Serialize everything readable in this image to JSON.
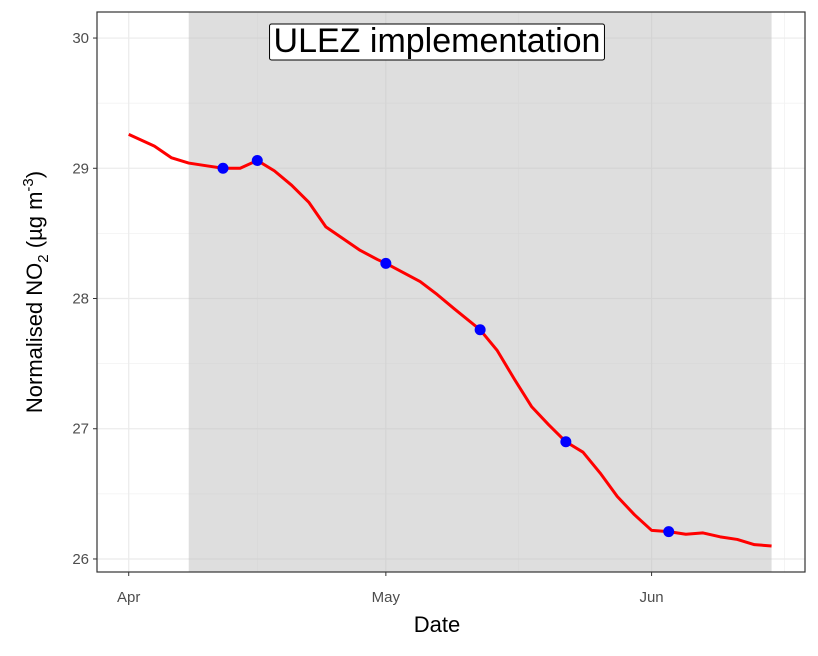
{
  "chart_data": {
    "type": "line",
    "xlabel": "Date",
    "ylabel": [
      "Normalised NO",
      "2",
      " (µg m",
      "-3",
      ")"
    ],
    "annotation": "ULEZ implementation",
    "shade": [
      7,
      75
    ],
    "xlim": [
      -3.7,
      78.9
    ],
    "xticks": [
      {
        "value": 0,
        "label": "Apr"
      },
      {
        "value": 30,
        "label": "May"
      },
      {
        "value": 61,
        "label": "Jun"
      }
    ],
    "ylim": [
      25.9,
      30.2
    ],
    "yticks": [
      26,
      27,
      28,
      29,
      30
    ],
    "grid": true,
    "series": [
      {
        "color": "#ff0000",
        "style": "line",
        "x": [
          0,
          3,
          5,
          7,
          9,
          11,
          13,
          15,
          17,
          19,
          21,
          23,
          25,
          27,
          29,
          30,
          32,
          34,
          36,
          38,
          41,
          43,
          45,
          47,
          49,
          51,
          53,
          55,
          57,
          59,
          61,
          63,
          65,
          67,
          69,
          71,
          73,
          75
        ],
        "values": [
          29.26,
          29.17,
          29.08,
          29.04,
          29.02,
          29.0,
          29.0,
          29.06,
          28.98,
          28.87,
          28.74,
          28.55,
          28.46,
          28.37,
          28.3,
          28.27,
          28.2,
          28.13,
          28.03,
          27.92,
          27.76,
          27.6,
          27.38,
          27.17,
          27.03,
          26.9,
          26.82,
          26.66,
          26.48,
          26.34,
          26.22,
          26.21,
          26.19,
          26.2,
          26.17,
          26.15,
          26.11,
          26.1
        ]
      },
      {
        "color": "#0000ff",
        "style": "points",
        "x": [
          11,
          15,
          30,
          41,
          51,
          63
        ],
        "values": [
          29.0,
          29.06,
          28.27,
          27.76,
          26.9,
          26.21
        ]
      }
    ]
  }
}
